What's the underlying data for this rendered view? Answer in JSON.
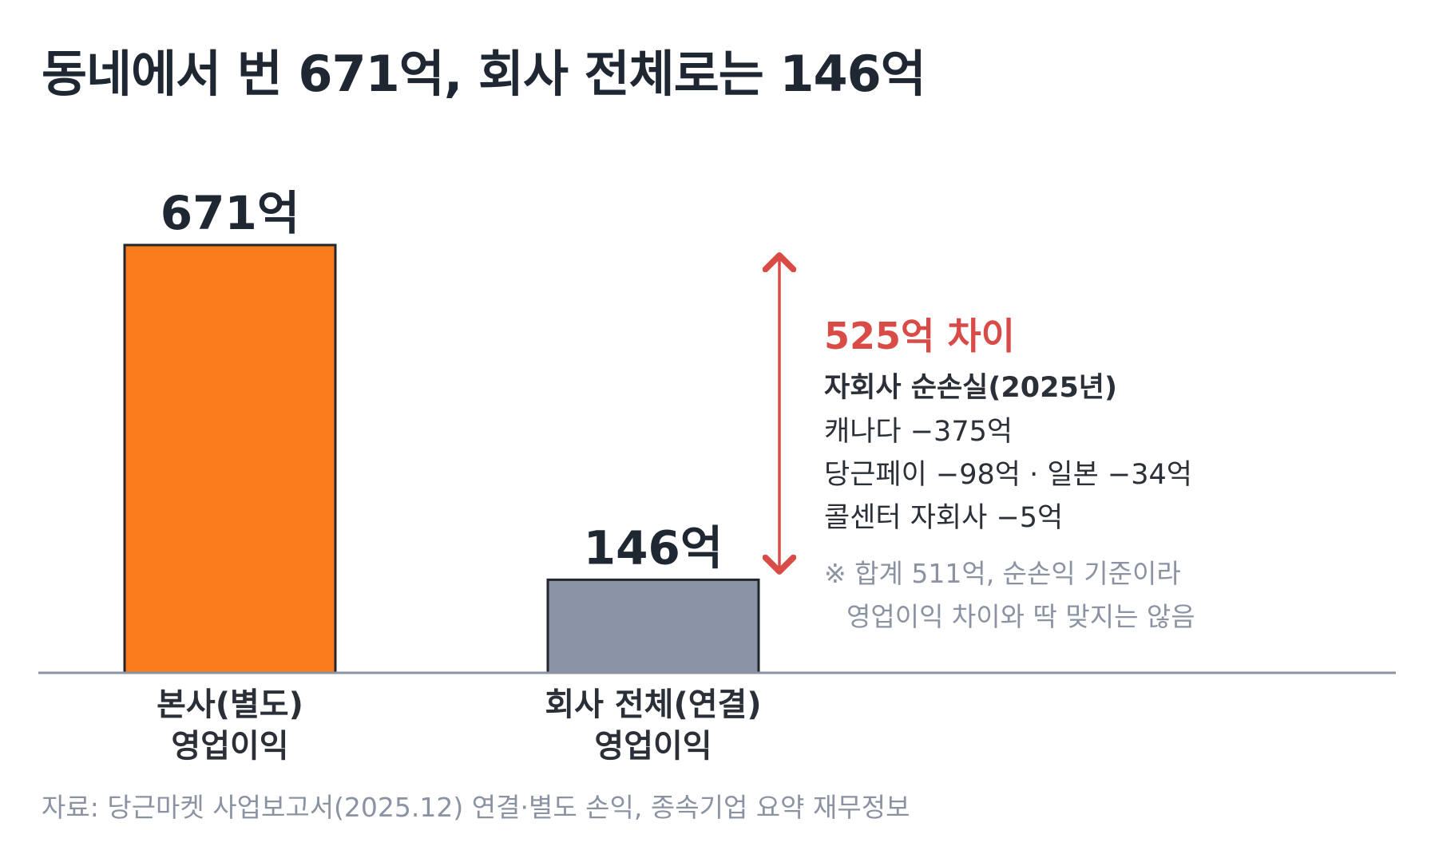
{
  "title": "동네에서 번 671억, 회사 전체로는 146억",
  "colors": {
    "bar_standalone": "#f97b1c",
    "bar_consolidated": "#8b93a6",
    "outline": "#22272e",
    "accent_red": "#d94b47",
    "baseline": "#8b93a3",
    "muted_text": "#8b93a3"
  },
  "chart_data": {
    "type": "bar",
    "categories": [
      "본사(별도)\n영업이익",
      "회사 전체(연결)\n영업이익"
    ],
    "category_lines": [
      [
        "본사(별도)",
        "영업이익"
      ],
      [
        "회사 전체(연결)",
        "영업이익"
      ]
    ],
    "values": [
      671,
      146
    ],
    "unit": "억",
    "value_labels": [
      "671억",
      "146억"
    ],
    "ylim": [
      0,
      700
    ],
    "grid": false,
    "annotation": {
      "type": "difference-arrow",
      "from_value": 671,
      "to_value": 146,
      "label": "525억 차이"
    }
  },
  "annotation_text": {
    "difference_label": "525억 차이",
    "subtitle": "자회사 순손실(2025년)",
    "items": [
      "캐나다 −375억",
      "당근페이 −98억 · 일본 −34억",
      "콜센터 자회사 −5억"
    ],
    "note_lines": [
      "※ 합계 511억, 순손익 기준이라",
      "영업이익 차이와 딱 맞지는 않음"
    ]
  },
  "source": "자료: 당근마켓 사업보고서(2025.12) 연결·별도 손익, 종속기업 요약 재무정보"
}
